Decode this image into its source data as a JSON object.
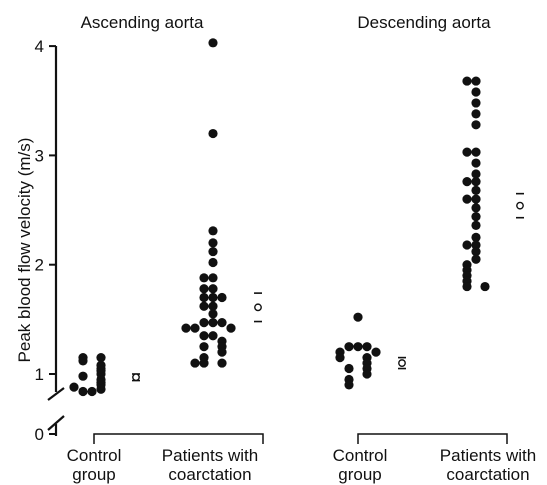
{
  "chart_data": {
    "type": "scatter",
    "ylabel": "Peak blood flow velocity (m/s)",
    "y_ticks": [
      "0",
      "1",
      "2",
      "3",
      "4"
    ],
    "ylim": [
      0,
      4.1
    ],
    "axis_break": true,
    "panels": [
      {
        "title": "Ascending aorta",
        "groups": [
          {
            "label": [
              "Control",
              "group"
            ],
            "values": [
              0.84,
              0.84,
              0.86,
              0.88,
              0.9,
              0.92,
              0.95,
              0.98,
              1.0,
              1.03,
              1.05,
              1.08,
              1.12,
              1.15,
              1.15
            ],
            "mean": 0.97,
            "sd_low": 0.94,
            "sd_high": 1.0
          },
          {
            "label": [
              "Patients with",
              "coarctation"
            ],
            "values": [
              4.03,
              3.2,
              2.31,
              2.2,
              2.12,
              2.02,
              1.88,
              1.88,
              1.78,
              1.78,
              1.7,
              1.7,
              1.7,
              1.62,
              1.62,
              1.55,
              1.47,
              1.47,
              1.47,
              1.42,
              1.42,
              1.42,
              1.35,
              1.35,
              1.3,
              1.25,
              1.25,
              1.2,
              1.15,
              1.1,
              1.1,
              1.1
            ],
            "mean": 1.61,
            "sd_low": 1.48,
            "sd_high": 1.74
          }
        ]
      },
      {
        "title": "Descending aorta",
        "groups": [
          {
            "label": [
              "Control",
              "group"
            ],
            "values": [
              1.52,
              1.25,
              1.25,
              1.25,
              1.2,
              1.2,
              1.15,
              1.15,
              1.1,
              1.05,
              1.05,
              1.0,
              0.95,
              0.9
            ],
            "mean": 1.1,
            "sd_low": 1.05,
            "sd_high": 1.15
          },
          {
            "label": [
              "Patients with",
              "coarctation"
            ],
            "values": [
              3.68,
              3.68,
              3.58,
              3.48,
              3.38,
              3.28,
              3.03,
              3.03,
              2.93,
              2.83,
              2.76,
              2.76,
              2.68,
              2.6,
              2.6,
              2.52,
              2.44,
              2.36,
              2.25,
              2.18,
              2.18,
              2.12,
              2.05,
              2.0,
              1.95,
              1.9,
              1.85,
              1.8,
              1.8
            ],
            "mean": 2.54,
            "sd_low": 2.43,
            "sd_high": 2.65
          }
        ]
      }
    ]
  }
}
